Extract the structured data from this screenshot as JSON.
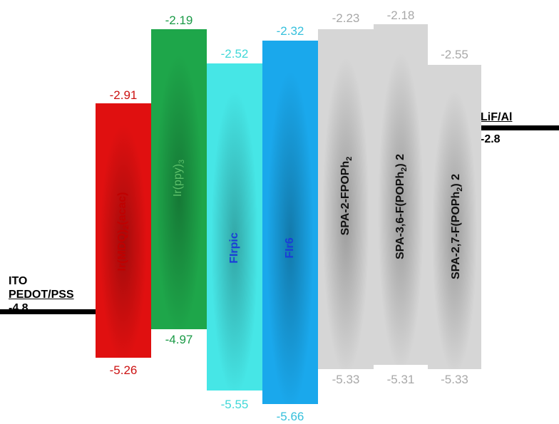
{
  "electrodes": {
    "anode": {
      "line1": "ITO",
      "line2": "PEDOT/PSS",
      "value": "-4.8"
    },
    "cathode": {
      "name": "LiF/Al",
      "value": "-2.8"
    }
  },
  "materials": [
    {
      "id": "ir-mdq",
      "label_main": "Ir(MDQ)",
      "label_sub": "2",
      "label_tail": "(acac)",
      "lumo": "-2.91",
      "homo": "-5.26",
      "color": "#e01010",
      "label_color": "#c00000",
      "value_color": "#cc1111"
    },
    {
      "id": "ir-ppy",
      "label_main": "Ir(ppy)",
      "label_sub": "3",
      "label_tail": "",
      "lumo": "-2.19",
      "homo": "-4.97",
      "color": "#1ea64a",
      "label_color": "#5cc06a",
      "value_color": "#1a9a46"
    },
    {
      "id": "firpic",
      "label_main": "FIrpic",
      "label_sub": "",
      "label_tail": "",
      "lumo": "-2.52",
      "homo": "-5.55",
      "color": "#46e6e6",
      "label_color": "#1a3ed8",
      "value_color": "#40d8d8"
    },
    {
      "id": "fir6",
      "label_main": "FIr6",
      "label_sub": "",
      "label_tail": "",
      "lumo": "-2.32",
      "homo": "-5.66",
      "color": "#1aa8ec",
      "label_color": "#1a3ed8",
      "value_color": "#36c0dc"
    },
    {
      "id": "spa-2-fpoph2",
      "label_main": "SPA-2-FPOPh",
      "label_sub": "2",
      "label_tail": "",
      "lumo": "-2.23",
      "homo": "-5.33",
      "color": "#d6d6d6",
      "label_color": "#111111",
      "value_color": "#a8a8a8"
    },
    {
      "id": "spa-36-f-poph2-2",
      "label_main": "SPA-3,6-F(POPh",
      "label_sub": "2",
      "label_tail": ") 2",
      "lumo": "-2.18",
      "homo": "-5.31",
      "color": "#d6d6d6",
      "label_color": "#111111",
      "value_color": "#a8a8a8"
    },
    {
      "id": "spa-27-f-poph2-2",
      "label_main": "SPA-2,7-F(POPh",
      "label_sub": "2",
      "label_tail": ") 2",
      "lumo": "-2.55",
      "homo": "-5.33",
      "color": "#d6d6d6",
      "label_color": "#111111",
      "value_color": "#a8a8a8"
    }
  ]
}
